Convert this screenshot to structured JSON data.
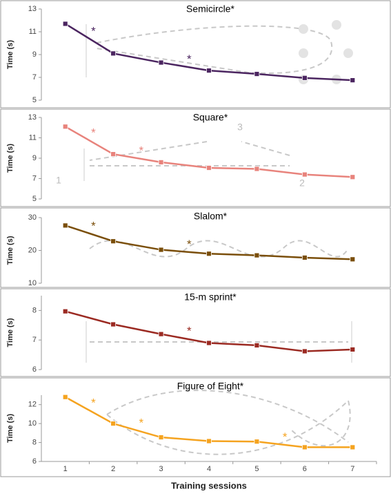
{
  "chart_data": [
    {
      "type": "line",
      "title": "Semicircle*",
      "ylabel": "Time (s)",
      "x": [
        1,
        2,
        3,
        4,
        5,
        6,
        7
      ],
      "xlim": [
        0.5,
        7.5
      ],
      "ylim": [
        5,
        13
      ],
      "yticks": [
        5,
        7,
        9,
        11,
        13
      ],
      "series": [
        {
          "color": "#4b2560",
          "values": [
            11.7,
            9.1,
            8.3,
            7.6,
            7.3,
            6.95,
            6.75
          ]
        }
      ],
      "annotations": [
        {
          "text": "*",
          "between": [
            1,
            2
          ]
        },
        {
          "text": "*",
          "between": [
            3,
            4
          ]
        }
      ]
    },
    {
      "type": "line",
      "title": "Square*",
      "ylabel": "Time (s)",
      "x": [
        1,
        2,
        3,
        4,
        5,
        6,
        7
      ],
      "xlim": [
        0.5,
        7.5
      ],
      "ylim": [
        5,
        13
      ],
      "yticks": [
        5,
        7,
        9,
        11,
        13
      ],
      "series": [
        {
          "color": "#e8837c",
          "values": [
            12.1,
            9.4,
            8.6,
            8.05,
            7.95,
            7.4,
            7.15
          ]
        }
      ],
      "annotations": [
        {
          "text": "*",
          "between": [
            1,
            2
          ]
        },
        {
          "text": "*",
          "between": [
            2,
            3
          ]
        }
      ],
      "diagram_labels": [
        "1",
        "2",
        "3"
      ]
    },
    {
      "type": "line",
      "title": "Slalom*",
      "ylabel": "Time (s)",
      "x": [
        1,
        2,
        3,
        4,
        5,
        6,
        7
      ],
      "xlim": [
        0.5,
        7.5
      ],
      "ylim": [
        10,
        30
      ],
      "yticks": [
        10,
        20,
        30
      ],
      "series": [
        {
          "color": "#7a4e0a",
          "values": [
            27.6,
            22.8,
            20.2,
            19.0,
            18.5,
            17.8,
            17.3
          ]
        }
      ],
      "annotations": [
        {
          "text": "*",
          "between": [
            1,
            2
          ]
        },
        {
          "text": "*",
          "between": [
            3,
            4
          ]
        }
      ]
    },
    {
      "type": "line",
      "title": "15-m sprint*",
      "ylabel": "Time (s)",
      "x": [
        1,
        2,
        3,
        4,
        5,
        6,
        7
      ],
      "xlim": [
        0.5,
        7.5
      ],
      "ylim": [
        6,
        8.5
      ],
      "yticks": [
        6,
        7,
        8
      ],
      "series": [
        {
          "color": "#9b2a22",
          "values": [
            7.97,
            7.53,
            7.2,
            6.9,
            6.82,
            6.62,
            6.68
          ]
        }
      ],
      "annotations": [
        {
          "text": "*",
          "between": [
            3,
            4
          ]
        }
      ]
    },
    {
      "type": "line",
      "title": "Figure of Eight*",
      "ylabel": "Time (s)",
      "x": [
        1,
        2,
        3,
        4,
        5,
        6,
        7
      ],
      "xlim": [
        0.5,
        7.5
      ],
      "ylim": [
        6,
        13
      ],
      "yticks": [
        6,
        8,
        10,
        12
      ],
      "xticks": [
        1,
        2,
        3,
        4,
        5,
        6,
        7
      ],
      "xlabel": "Training sessions",
      "series": [
        {
          "color": "#f5a31f",
          "values": [
            12.8,
            10.0,
            8.55,
            8.15,
            8.1,
            7.5,
            7.5
          ]
        }
      ],
      "annotations": [
        {
          "text": "*",
          "between": [
            1,
            2
          ]
        },
        {
          "text": "*",
          "between": [
            2,
            3
          ]
        },
        {
          "text": "*",
          "between": [
            5,
            6
          ]
        }
      ]
    }
  ]
}
